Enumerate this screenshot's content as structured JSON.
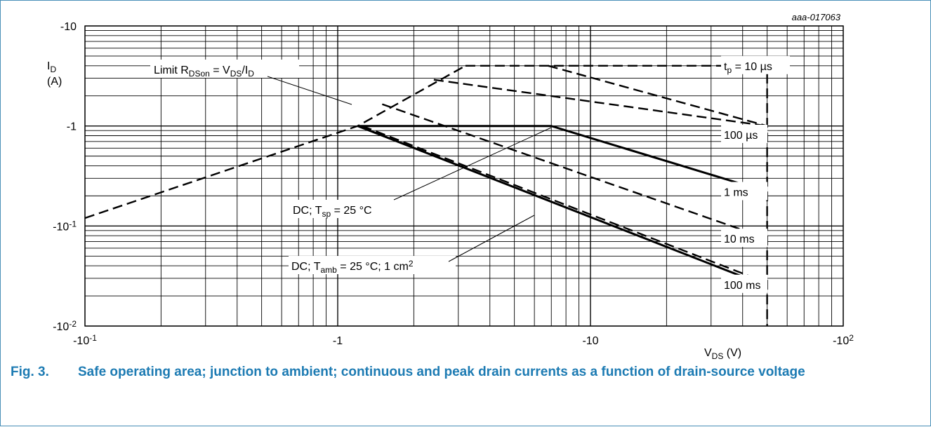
{
  "chart_data": {
    "type": "line",
    "id_code": "aaa-017063",
    "xlabel": "V",
    "xlabel_sub": "DS",
    "xlabel_unit": " (V)",
    "ylabel": "I",
    "ylabel_sub": "D",
    "ylabel_unit": "(A)",
    "x_scale": "log",
    "y_scale": "log",
    "xlim": [
      -0.1,
      -100
    ],
    "ylim": [
      -0.01,
      -10
    ],
    "grid": true,
    "x_ticks": [
      {
        "value": -0.1,
        "base": "-10",
        "exp": "-1"
      },
      {
        "value": -1,
        "base": "-1",
        "exp": ""
      },
      {
        "value": -10,
        "base": "-10",
        "exp": ""
      },
      {
        "value": -100,
        "base": "-10",
        "exp": "2"
      }
    ],
    "y_ticks": [
      {
        "value": -10,
        "base": "-10",
        "exp": ""
      },
      {
        "value": -1,
        "base": "-1",
        "exp": ""
      },
      {
        "value": -0.1,
        "base": "-10",
        "exp": "-1"
      },
      {
        "value": -0.01,
        "base": "-10",
        "exp": "-2"
      }
    ],
    "series": [
      {
        "name": "Limit RDSon = VDS/ID",
        "style": "dashed",
        "points": [
          [
            -0.1,
            -0.12
          ],
          [
            -1.2,
            -1.0
          ],
          [
            -3.2,
            -4.0
          ]
        ]
      },
      {
        "name": "tp = 10 µs",
        "style": "dashed",
        "points": [
          [
            -3.2,
            -4.0
          ],
          [
            -50,
            -4.0
          ],
          [
            -50,
            -0.01
          ]
        ]
      },
      {
        "name": "100 µs",
        "style": "dashed",
        "points": [
          [
            -2.4,
            -2.9
          ],
          [
            -50,
            -1.0
          ]
        ]
      },
      {
        "name": "1 ms",
        "style": "dashed",
        "points": [
          [
            -6.8,
            -4.0
          ],
          [
            -50,
            -1.0
          ]
        ]
      },
      {
        "name": "10 ms",
        "style": "dashed",
        "points": [
          [
            -1.5,
            -1.65
          ],
          [
            -50,
            -0.075
          ]
        ]
      },
      {
        "name": "100 ms",
        "style": "dashed",
        "points": [
          [
            -1.25,
            -1.0
          ],
          [
            -50,
            -0.027
          ]
        ]
      },
      {
        "name": "DC; Tsp = 25 °C",
        "style": "solid",
        "points": [
          [
            -1.2,
            -1.0
          ],
          [
            -7.0,
            -1.0
          ],
          [
            -50,
            -0.22
          ]
        ]
      },
      {
        "name": "DC; Tamb = 25 °C; 1 cm2",
        "style": "solid",
        "points": [
          [
            -1.2,
            -1.0
          ],
          [
            -50,
            -0.025
          ]
        ]
      }
    ],
    "curve_labels": [
      {
        "id": "tp",
        "main": "t",
        "sub": "p",
        "rest": " = 10 µs",
        "sup": ""
      },
      {
        "id": "c100us",
        "main": "100 µs",
        "sub": "",
        "rest": "",
        "sup": ""
      },
      {
        "id": "c1ms",
        "main": "1 ms",
        "sub": "",
        "rest": "",
        "sup": ""
      },
      {
        "id": "c10ms",
        "main": "10 ms",
        "sub": "",
        "rest": "",
        "sup": ""
      },
      {
        "id": "c100ms",
        "main": "100 ms",
        "sub": "",
        "rest": "",
        "sup": ""
      }
    ],
    "annotations": [
      {
        "id": "limit",
        "parts": [
          [
            "Limit R",
            ""
          ],
          [
            "DSon",
            "sub"
          ],
          [
            " = V",
            ""
          ],
          [
            "DS",
            "sub"
          ],
          [
            "/I",
            ""
          ],
          [
            "D",
            "sub"
          ]
        ]
      },
      {
        "id": "dc_tsp",
        "parts": [
          [
            "DC; T",
            ""
          ],
          [
            "sp",
            "sub"
          ],
          [
            " = 25 °C",
            ""
          ]
        ]
      },
      {
        "id": "dc_tamb",
        "parts": [
          [
            "DC; T",
            ""
          ],
          [
            "amb",
            "sub"
          ],
          [
            " = 25 °C; 1 cm",
            ""
          ],
          [
            "2",
            "sup"
          ]
        ]
      }
    ]
  },
  "caption": {
    "number": "Fig. 3.",
    "text": "Safe operating area; junction to ambient; continuous and peak drain currents as a function of drain-source voltage"
  }
}
